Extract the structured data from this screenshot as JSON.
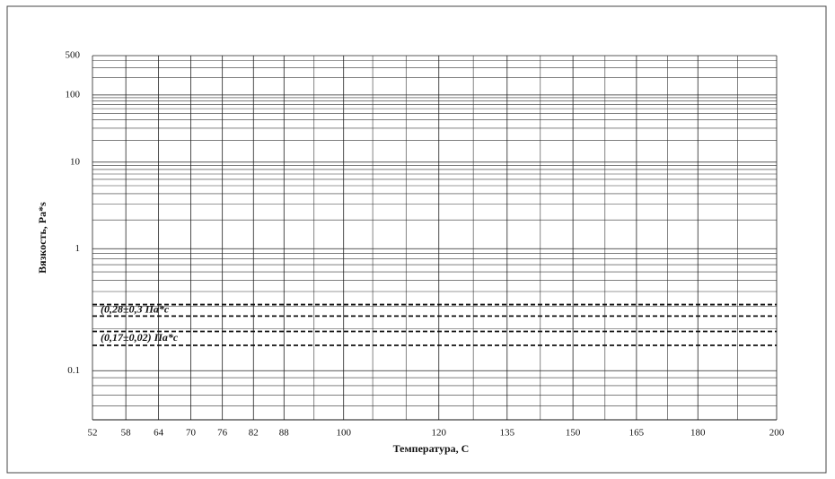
{
  "chart_data": {
    "type": "line",
    "x_label": "Температура, С",
    "y_label": "Вязкость, Pa*s",
    "x_scale": "log-kelvin",
    "y_scale": "log-log",
    "xlim": [
      52,
      200
    ],
    "ylim": [
      0.05,
      500
    ],
    "xticks": [
      52,
      58,
      64,
      70,
      76,
      82,
      88,
      100,
      120,
      135,
      150,
      165,
      180,
      200
    ],
    "x_minor_grid": [
      94,
      106,
      113,
      127.5,
      142.5,
      157.5,
      172.5,
      190
    ],
    "yticks": [
      0.1,
      1,
      10,
      100,
      500
    ],
    "y_minor_grid": [
      0.06,
      0.07,
      0.08,
      0.09,
      0.2,
      0.3,
      0.4,
      0.5,
      0.6,
      0.7,
      0.8,
      0.9,
      2,
      3,
      4,
      5,
      6,
      7,
      8,
      9,
      20,
      30,
      40,
      50,
      60,
      70,
      80,
      90,
      200,
      300,
      400
    ],
    "grid": true,
    "reference_lines": [
      {
        "label": "(0,28±0,3 Па*с",
        "values": [
          0.31,
          0.25
        ]
      },
      {
        "label": "(0,17±0,02) Па*с",
        "values": [
          0.19,
          0.15
        ]
      }
    ]
  }
}
